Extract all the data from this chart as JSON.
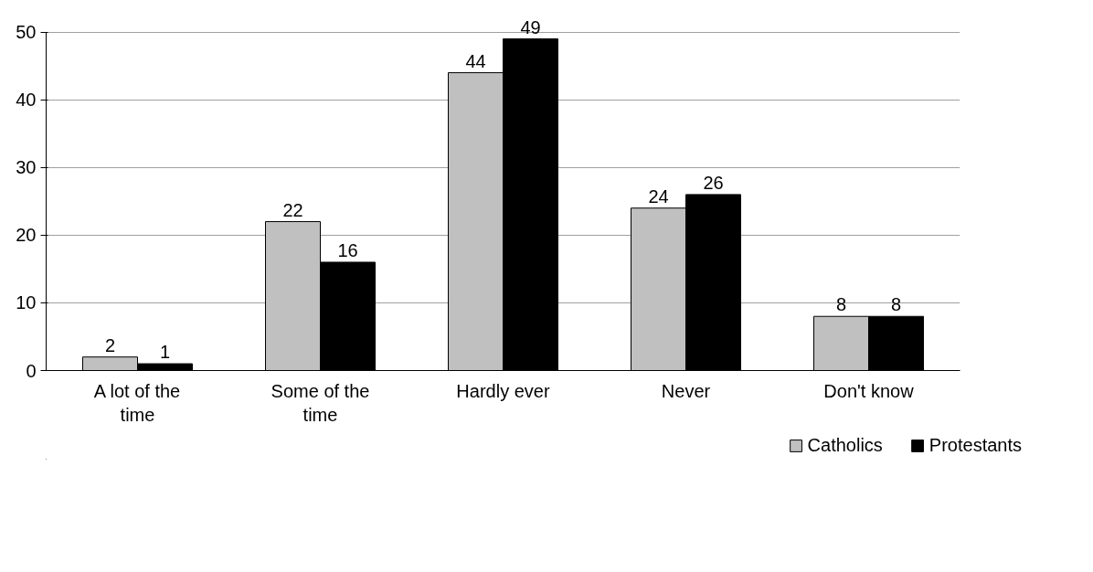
{
  "chart_data": {
    "type": "bar",
    "categories": [
      "A lot of the time",
      "Some of the time",
      "Hardly ever",
      "Never",
      "Don't know"
    ],
    "series": [
      {
        "name": "Catholics",
        "color": "#c0c0c0",
        "values": [
          2,
          22,
          44,
          24,
          8
        ]
      },
      {
        "name": "Protestants",
        "color": "#000000",
        "values": [
          1,
          16,
          49,
          26,
          8
        ]
      }
    ],
    "ylim": [
      0,
      50
    ],
    "yticks": [
      0,
      10,
      20,
      30,
      40,
      50
    ],
    "grid": "y",
    "legend": "bottom right",
    "data_labels": true
  }
}
